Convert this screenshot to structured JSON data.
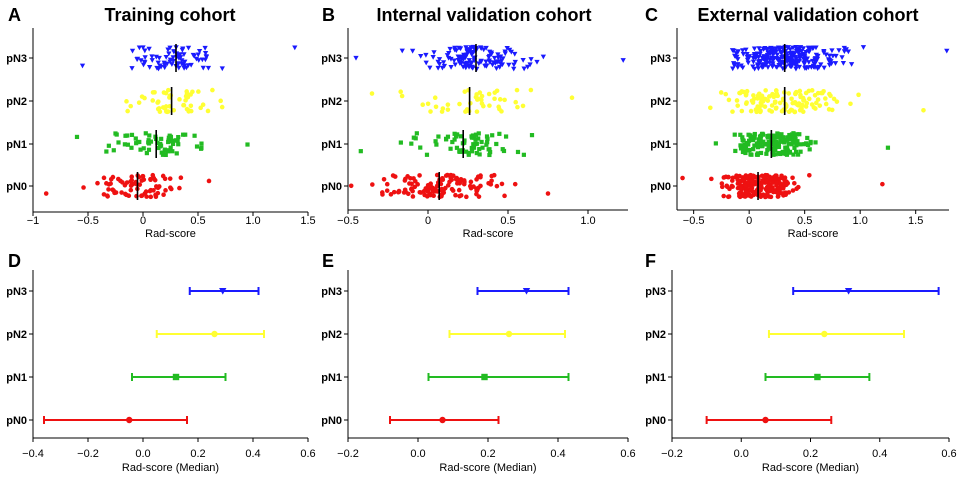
{
  "colors": {
    "pN3": "#1a1aff",
    "pN2": "#ffff33",
    "pN1": "#22bb22",
    "pN0": "#ee1111",
    "axis": "#000000"
  },
  "chart_data": [
    {
      "id": "A",
      "panel_label": "A",
      "type": "scatter",
      "title": "Training cohort",
      "xlabel": "Rad-score",
      "xlim": [
        -1.0,
        1.5
      ],
      "xticks": [
        -1,
        -0.5,
        0,
        0.5,
        1.0,
        1.5
      ],
      "categories": [
        "pN3",
        "pN2",
        "pN1",
        "pN0"
      ],
      "series": [
        {
          "name": "pN3",
          "marker": "triangle-down",
          "count": 80,
          "min": -0.55,
          "max": 1.38,
          "center": 0.3,
          "spread": 0.17,
          "median": 0.3
        },
        {
          "name": "pN2",
          "marker": "dot",
          "count": 50,
          "min": -0.15,
          "max": 0.72,
          "center": 0.26,
          "spread": 0.18,
          "median": 0.26
        },
        {
          "name": "pN1",
          "marker": "square",
          "count": 65,
          "min": -0.6,
          "max": 0.95,
          "center": 0.12,
          "spread": 0.2,
          "median": 0.12
        },
        {
          "name": "pN0",
          "marker": "dot",
          "count": 75,
          "min": -0.88,
          "max": 0.6,
          "center": -0.05,
          "spread": 0.24,
          "median": -0.05
        }
      ]
    },
    {
      "id": "B",
      "panel_label": "B",
      "type": "scatter",
      "title": "Internal validation cohort",
      "xlabel": "Rad-score",
      "xlim": [
        -0.5,
        1.25
      ],
      "xticks": [
        -0.5,
        0,
        0.5,
        1.0
      ],
      "categories": [
        "pN3",
        "pN2",
        "pN1",
        "pN0"
      ],
      "series": [
        {
          "name": "pN3",
          "marker": "triangle-down",
          "count": 130,
          "min": -0.45,
          "max": 1.22,
          "center": 0.3,
          "spread": 0.17,
          "median": 0.3
        },
        {
          "name": "pN2",
          "marker": "dot",
          "count": 45,
          "min": -0.35,
          "max": 0.9,
          "center": 0.26,
          "spread": 0.2,
          "median": 0.26
        },
        {
          "name": "pN1",
          "marker": "square",
          "count": 70,
          "min": -0.42,
          "max": 0.65,
          "center": 0.22,
          "spread": 0.17,
          "median": 0.22
        },
        {
          "name": "pN0",
          "marker": "dot",
          "count": 130,
          "min": -0.48,
          "max": 0.75,
          "center": 0.07,
          "spread": 0.18,
          "median": 0.07
        }
      ]
    },
    {
      "id": "C",
      "panel_label": "C",
      "type": "scatter",
      "title": "External validation cohort",
      "xlabel": "Rad-score",
      "xlim": [
        -0.65,
        1.8
      ],
      "xticks": [
        -0.5,
        0,
        0.5,
        1.0,
        1.5
      ],
      "categories": [
        "pN3",
        "pN2",
        "pN1",
        "pN0"
      ],
      "series": [
        {
          "name": "pN3",
          "marker": "triangle-down",
          "count": 260,
          "min": -0.15,
          "max": 1.78,
          "center": 0.32,
          "spread": 0.27,
          "median": 0.32
        },
        {
          "name": "pN2",
          "marker": "dot",
          "count": 130,
          "min": -0.35,
          "max": 1.57,
          "center": 0.32,
          "spread": 0.26,
          "median": 0.32
        },
        {
          "name": "pN1",
          "marker": "square",
          "count": 170,
          "min": -0.3,
          "max": 1.25,
          "center": 0.2,
          "spread": 0.17,
          "median": 0.2
        },
        {
          "name": "pN0",
          "marker": "dot",
          "count": 240,
          "min": -0.6,
          "max": 1.2,
          "center": 0.08,
          "spread": 0.15,
          "median": 0.08
        }
      ]
    },
    {
      "id": "D",
      "panel_label": "D",
      "type": "errorbar",
      "title": "",
      "xlabel": "Rad-score (Median)",
      "xlim": [
        -0.4,
        0.6
      ],
      "xticks": [
        -0.4,
        -0.2,
        0.0,
        0.2,
        0.4,
        0.6
      ],
      "categories": [
        "pN3",
        "pN2",
        "pN1",
        "pN0"
      ],
      "series": [
        {
          "name": "pN3",
          "marker": "triangle-down",
          "median": 0.29,
          "low": 0.17,
          "high": 0.42
        },
        {
          "name": "pN2",
          "marker": "dot",
          "median": 0.26,
          "low": 0.05,
          "high": 0.44
        },
        {
          "name": "pN1",
          "marker": "square",
          "median": 0.12,
          "low": -0.04,
          "high": 0.3
        },
        {
          "name": "pN0",
          "marker": "dot",
          "median": -0.05,
          "low": -0.36,
          "high": 0.16
        }
      ]
    },
    {
      "id": "E",
      "panel_label": "E",
      "type": "errorbar",
      "title": "",
      "xlabel": "Rad-score (Median)",
      "xlim": [
        -0.2,
        0.6
      ],
      "xticks": [
        -0.2,
        0.0,
        0.2,
        0.4,
        0.6
      ],
      "categories": [
        "pN3",
        "pN2",
        "pN1",
        "pN0"
      ],
      "series": [
        {
          "name": "pN3",
          "marker": "triangle-down",
          "median": 0.31,
          "low": 0.17,
          "high": 0.43
        },
        {
          "name": "pN2",
          "marker": "dot",
          "median": 0.26,
          "low": 0.09,
          "high": 0.42
        },
        {
          "name": "pN1",
          "marker": "square",
          "median": 0.19,
          "low": 0.03,
          "high": 0.43
        },
        {
          "name": "pN0",
          "marker": "dot",
          "median": 0.07,
          "low": -0.08,
          "high": 0.23
        }
      ]
    },
    {
      "id": "F",
      "panel_label": "F",
      "type": "errorbar",
      "title": "",
      "xlabel": "Rad-score (Median)",
      "xlim": [
        -0.2,
        0.6
      ],
      "xticks": [
        -0.2,
        0.0,
        0.2,
        0.4,
        0.6
      ],
      "categories": [
        "pN3",
        "pN2",
        "pN1",
        "pN0"
      ],
      "series": [
        {
          "name": "pN3",
          "marker": "triangle-down",
          "median": 0.31,
          "low": 0.15,
          "high": 0.57
        },
        {
          "name": "pN2",
          "marker": "dot",
          "median": 0.24,
          "low": 0.08,
          "high": 0.47
        },
        {
          "name": "pN1",
          "marker": "square",
          "median": 0.22,
          "low": 0.07,
          "high": 0.37
        },
        {
          "name": "pN0",
          "marker": "dot",
          "median": 0.07,
          "low": -0.1,
          "high": 0.26
        }
      ]
    }
  ]
}
